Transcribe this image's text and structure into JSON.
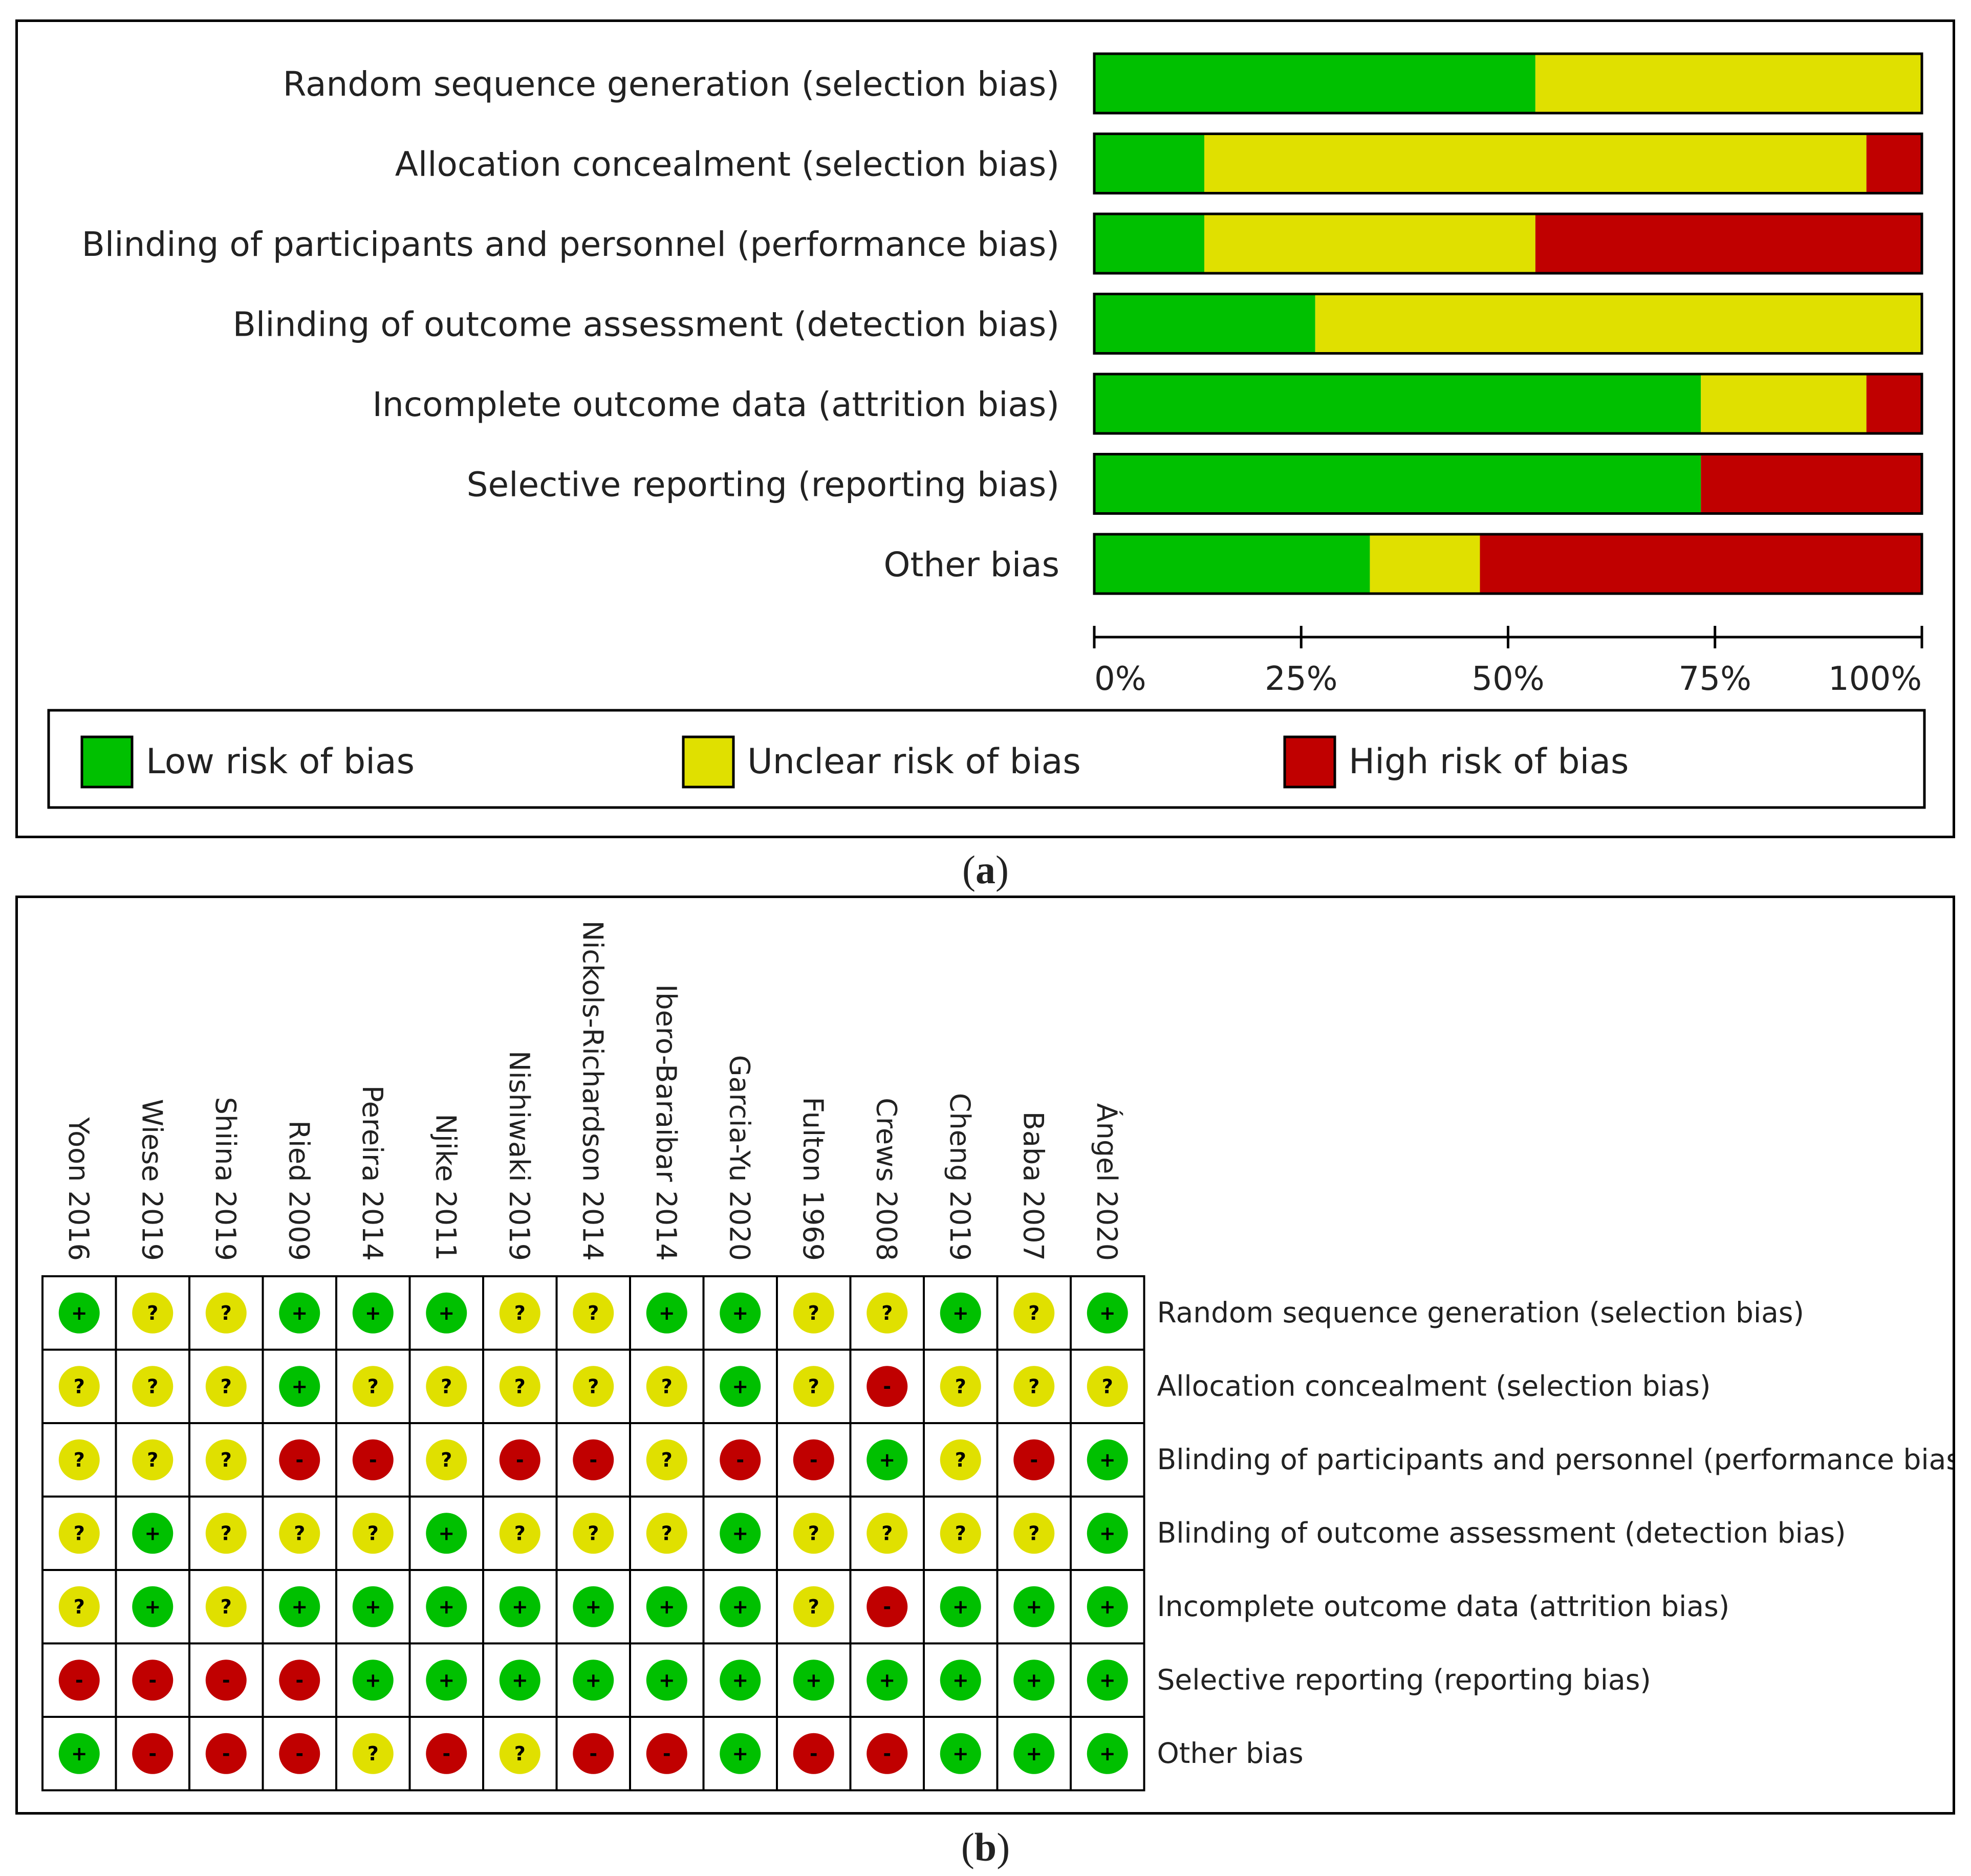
{
  "colors": {
    "low": "#00C000",
    "unclear": "#E0E000",
    "high": "#C00000",
    "frame": "#000000"
  },
  "panel_a": {
    "caption_letter": "a"
  },
  "panel_b": {
    "caption_letter": "b"
  },
  "chart_data": [
    {
      "type": "bar",
      "orientation": "horizontal-stacked-100",
      "title": "",
      "categories": [
        "Random sequence generation (selection bias)",
        "Allocation concealment (selection bias)",
        "Blinding of participants and personnel (performance bias)",
        "Blinding of outcome assessment (detection bias)",
        "Incomplete outcome data (attrition bias)",
        "Selective reporting (reporting bias)",
        "Other bias"
      ],
      "series": [
        {
          "name": "Low risk of bias",
          "key": "low",
          "values": [
            53.3,
            13.3,
            13.3,
            26.7,
            73.3,
            73.3,
            33.3
          ]
        },
        {
          "name": "Unclear risk of bias",
          "key": "unclear",
          "values": [
            46.7,
            80.0,
            40.0,
            73.3,
            20.0,
            0.0,
            13.3
          ]
        },
        {
          "name": "High risk of bias",
          "key": "high",
          "values": [
            0.0,
            6.7,
            46.7,
            0.0,
            6.7,
            26.7,
            53.3
          ]
        }
      ],
      "xlim": [
        0,
        100
      ],
      "ticks": [
        0,
        25,
        50,
        75,
        100
      ],
      "tick_labels": [
        "0%",
        "25%",
        "50%",
        "75%",
        "100%"
      ],
      "legend": [
        "Low risk of bias",
        "Unclear risk of bias",
        "High risk of bias"
      ],
      "legend_position": "bottom"
    },
    {
      "type": "heatmap",
      "title": "",
      "studies": [
        "Yoon 2016",
        "Wiese 2019",
        "Shiina 2019",
        "Ried 2009",
        "Pereira 2014",
        "Njike 2011",
        "Nishiwaki 2019",
        "Nickols-Richardson 2014",
        "Ibero-Baraibar 2014",
        "Garcia-Yu 2020",
        "Fulton 1969",
        "Crews 2008",
        "Cheng 2019",
        "Baba 2007",
        "Ángel 2020"
      ],
      "domains": [
        "Random sequence generation (selection bias)",
        "Allocation concealment (selection bias)",
        "Blinding of participants and personnel (performance bias)",
        "Blinding of outcome assessment (detection bias)",
        "Incomplete outcome data (attrition bias)",
        "Selective reporting (reporting bias)",
        "Other bias"
      ],
      "symbols": {
        "low": "+",
        "unclear": "?",
        "high": "-"
      },
      "grid": [
        [
          "low",
          "unclear",
          "unclear",
          "low",
          "low",
          "low",
          "unclear",
          "unclear",
          "low",
          "low",
          "unclear",
          "unclear",
          "low",
          "unclear",
          "low"
        ],
        [
          "unclear",
          "unclear",
          "unclear",
          "low",
          "unclear",
          "unclear",
          "unclear",
          "unclear",
          "unclear",
          "low",
          "unclear",
          "high",
          "unclear",
          "unclear",
          "unclear"
        ],
        [
          "unclear",
          "unclear",
          "unclear",
          "high",
          "high",
          "unclear",
          "high",
          "high",
          "unclear",
          "high",
          "high",
          "low",
          "unclear",
          "high",
          "low"
        ],
        [
          "unclear",
          "low",
          "unclear",
          "unclear",
          "unclear",
          "low",
          "unclear",
          "unclear",
          "unclear",
          "low",
          "unclear",
          "unclear",
          "unclear",
          "unclear",
          "low"
        ],
        [
          "unclear",
          "low",
          "unclear",
          "low",
          "low",
          "low",
          "low",
          "low",
          "low",
          "low",
          "unclear",
          "high",
          "low",
          "low",
          "low"
        ],
        [
          "high",
          "high",
          "high",
          "high",
          "low",
          "low",
          "low",
          "low",
          "low",
          "low",
          "low",
          "low",
          "low",
          "low",
          "low"
        ],
        [
          "low",
          "high",
          "high",
          "high",
          "unclear",
          "high",
          "unclear",
          "high",
          "high",
          "low",
          "high",
          "high",
          "low",
          "low",
          "low"
        ]
      ]
    }
  ]
}
